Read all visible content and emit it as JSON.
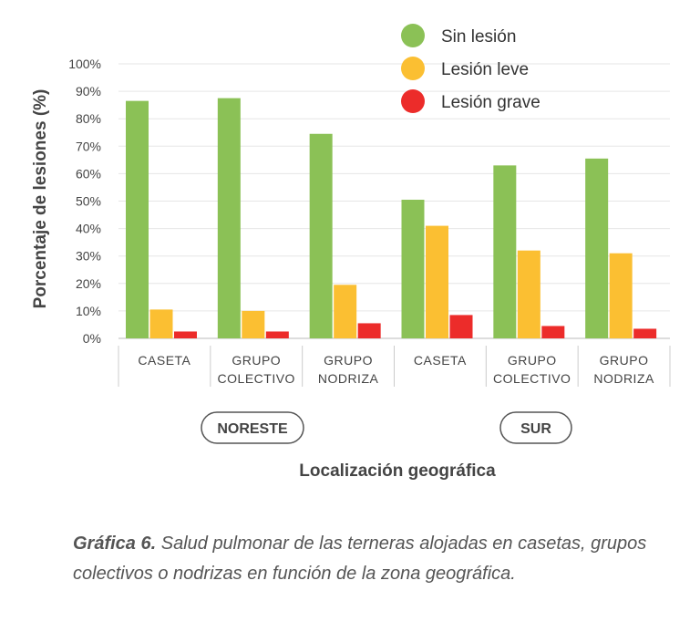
{
  "chart_data": {
    "type": "bar",
    "title": "",
    "ylabel": "Porcentaje de lesiones (%)",
    "xlabel": "Localización geográfica",
    "ylim": [
      0,
      100
    ],
    "yticks": [
      "0%",
      "10%",
      "20%",
      "30%",
      "40%",
      "50%",
      "60%",
      "70%",
      "80%",
      "90%",
      "100%"
    ],
    "categories": [
      [
        "CASETA"
      ],
      [
        "GRUPO",
        "COLECTIVO"
      ],
      [
        "GRUPO",
        "NODRIZA"
      ],
      [
        "CASETA"
      ],
      [
        "GRUPO",
        "COLECTIVO"
      ],
      [
        "GRUPO",
        "NODRIZA"
      ]
    ],
    "regions": [
      "NORESTE",
      "SUR"
    ],
    "series": [
      {
        "name": "Sin lesión",
        "color": "#8bc156",
        "values": [
          86.5,
          87.5,
          74.5,
          50.5,
          63,
          65.5
        ]
      },
      {
        "name": "Lesión leve",
        "color": "#fbbf32",
        "values": [
          10.5,
          10,
          19.5,
          41,
          32,
          31
        ]
      },
      {
        "name": "Lesión grave",
        "color": "#ec2c2a",
        "values": [
          2.5,
          2.5,
          5.5,
          8.5,
          4.5,
          3.5
        ]
      }
    ],
    "legend_position": "top-right",
    "grid": true
  },
  "caption": {
    "label": "Gráfica 6.",
    "text": " Salud pulmonar de las terneras alojadas en casetas, grupos colectivos o nodrizas en función de la zona geográfica."
  }
}
